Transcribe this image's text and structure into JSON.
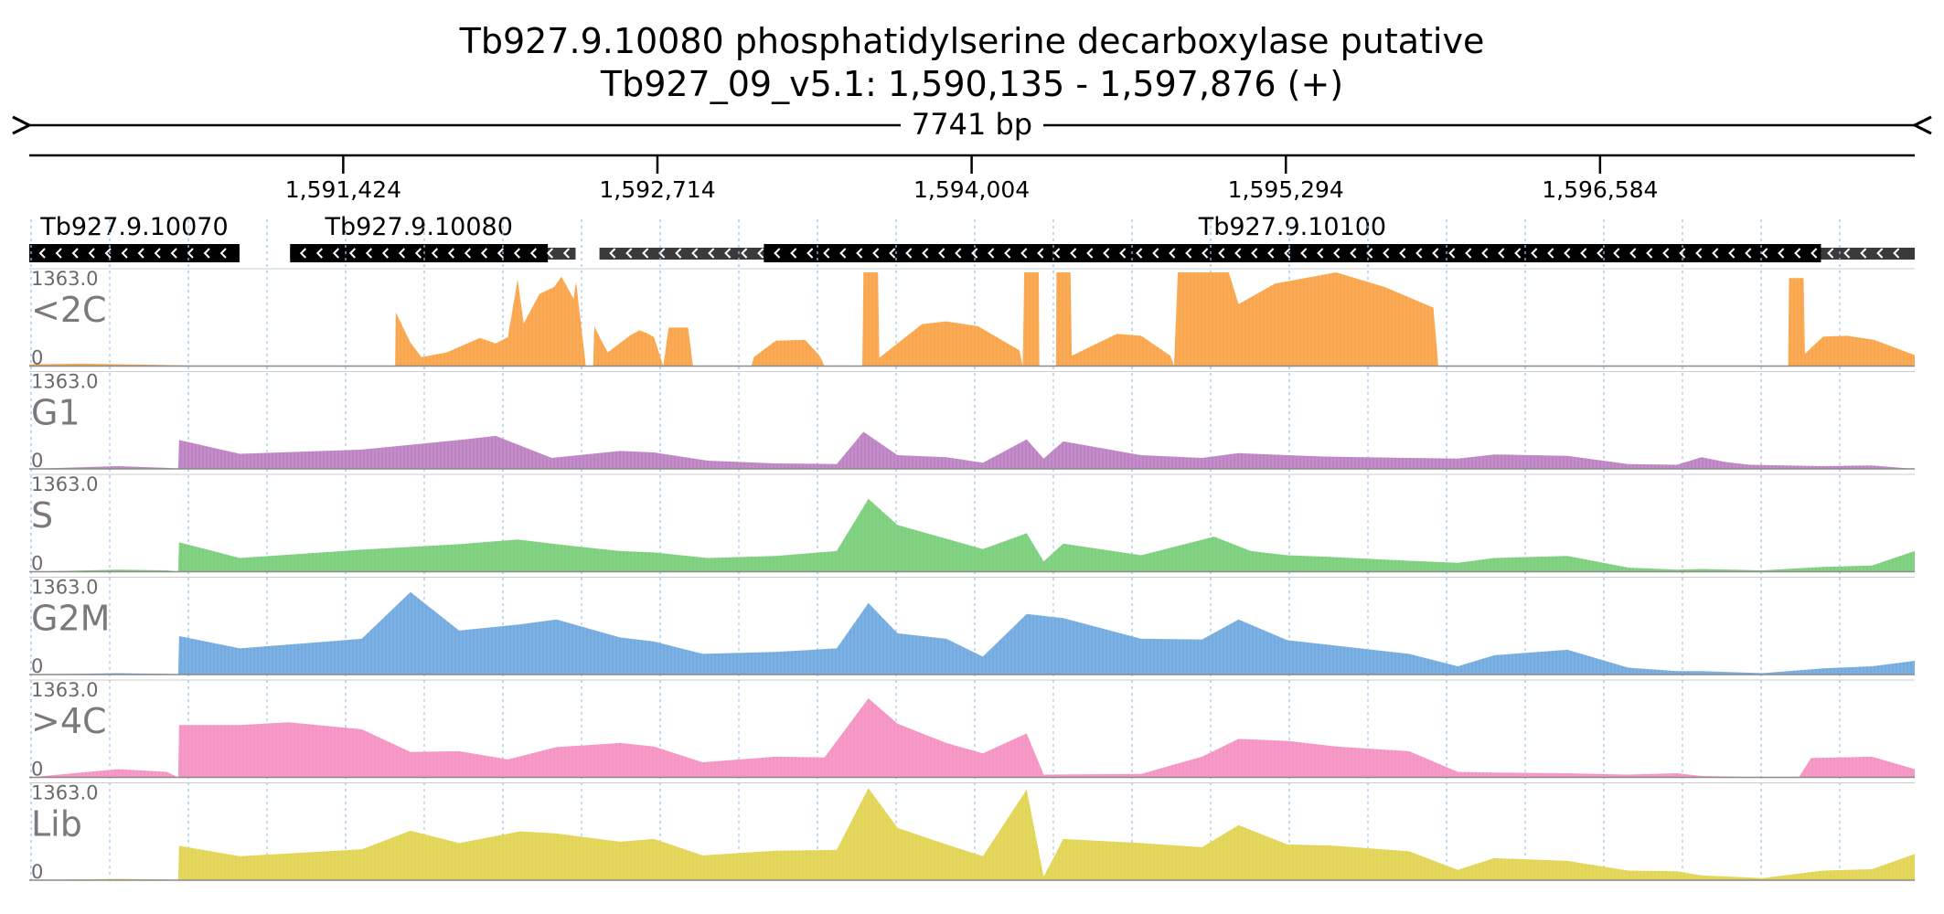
{
  "header": {
    "title_line1": "Tb927.9.10080  phosphatidylserine decarboxylase  putative",
    "title_line2": "Tb927_09_v5.1: 1,590,135 - 1,597,876 (+)",
    "span_label": "7741 bp"
  },
  "chart_data": {
    "type": "area",
    "title": "Tb927.9.10080  phosphatidylserine decarboxylase  putative",
    "subtitle": "Tb927_09_v5.1: 1,590,135 - 1,597,876 (+)",
    "region": {
      "chromosome": "Tb927_09_v5.1",
      "start": 1590135,
      "end": 1597876,
      "strand": "+",
      "length_bp": 7741
    },
    "x_ticks": [
      1591424,
      1592714,
      1594004,
      1595294,
      1596584
    ],
    "x_tick_labels": [
      "1,591,424",
      "1,592,714",
      "1,594,004",
      "1,595,294",
      "1,596,584"
    ],
    "ylim": [
      0,
      1363.0
    ],
    "y_max_label": "1363.0",
    "y_min_label": "0",
    "grid": true,
    "genes": [
      {
        "label": "Tb927.9.10070",
        "start": 1590135,
        "end": 1590998,
        "strand": "-",
        "cds_start": 1590135,
        "cds_end": 1590998
      },
      {
        "label": "Tb927.9.10080",
        "start": 1591206,
        "end": 1592378,
        "strand": "-",
        "cds_start": 1591206,
        "cds_end": 1592264
      },
      {
        "label": "Tb927.9.10100",
        "start": 1592476,
        "end": 1597876,
        "strand": "-",
        "cds_start": 1593151,
        "cds_end": 1597491
      }
    ],
    "series": [
      {
        "name": "<2C",
        "color": "#f9a54b",
        "points": [
          [
            1590135,
            25
          ],
          [
            1590350,
            35
          ],
          [
            1590550,
            22
          ],
          [
            1590650,
            18
          ],
          [
            1590820,
            5
          ],
          [
            1591637,
            0
          ],
          [
            1591640,
            780
          ],
          [
            1591700,
            340
          ],
          [
            1591745,
            130
          ],
          [
            1591850,
            200
          ],
          [
            1591985,
            410
          ],
          [
            1592050,
            330
          ],
          [
            1592100,
            420
          ],
          [
            1592140,
            1260
          ],
          [
            1592165,
            620
          ],
          [
            1592230,
            1050
          ],
          [
            1592290,
            1150
          ],
          [
            1592320,
            1300
          ],
          [
            1592370,
            980
          ],
          [
            1592380,
            1230
          ],
          [
            1592420,
            0
          ],
          [
            1592450,
            0
          ],
          [
            1592455,
            580
          ],
          [
            1592480,
            400
          ],
          [
            1592510,
            200
          ],
          [
            1592600,
            440
          ],
          [
            1592640,
            520
          ],
          [
            1592670,
            480
          ],
          [
            1592700,
            420
          ],
          [
            1592738,
            0
          ],
          [
            1592760,
            560
          ],
          [
            1592840,
            560
          ],
          [
            1592860,
            0
          ],
          [
            1593100,
            0
          ],
          [
            1593110,
            130
          ],
          [
            1593200,
            370
          ],
          [
            1593320,
            380
          ],
          [
            1593380,
            150
          ],
          [
            1593400,
            0
          ],
          [
            1593555,
            0
          ],
          [
            1593560,
            1363
          ],
          [
            1593620,
            1363
          ],
          [
            1593625,
            120
          ],
          [
            1593800,
            610
          ],
          [
            1593900,
            650
          ],
          [
            1594030,
            580
          ],
          [
            1594200,
            230
          ],
          [
            1594214,
            0
          ],
          [
            1594220,
            1363
          ],
          [
            1594280,
            1363
          ],
          [
            1594282,
            0
          ],
          [
            1594350,
            0
          ],
          [
            1594352,
            1363
          ],
          [
            1594410,
            1363
          ],
          [
            1594415,
            150
          ],
          [
            1594600,
            470
          ],
          [
            1594700,
            440
          ],
          [
            1594820,
            150
          ],
          [
            1594835,
            0
          ],
          [
            1594850,
            1363
          ],
          [
            1595060,
            1363
          ],
          [
            1595100,
            900
          ],
          [
            1595250,
            1200
          ],
          [
            1595500,
            1363
          ],
          [
            1595700,
            1150
          ],
          [
            1595900,
            850
          ],
          [
            1595920,
            0
          ],
          [
            1597356,
            0
          ],
          [
            1597360,
            1280
          ],
          [
            1597420,
            1280
          ],
          [
            1597425,
            180
          ],
          [
            1597500,
            430
          ],
          [
            1597600,
            440
          ],
          [
            1597710,
            380
          ],
          [
            1597876,
            160
          ]
        ]
      },
      {
        "name": "G1",
        "color": "#be83c4",
        "points": [
          [
            1590135,
            0
          ],
          [
            1590500,
            40
          ],
          [
            1590700,
            15
          ],
          [
            1590746,
            0
          ],
          [
            1590750,
            420
          ],
          [
            1591000,
            220
          ],
          [
            1591500,
            280
          ],
          [
            1591900,
            420
          ],
          [
            1592050,
            480
          ],
          [
            1592280,
            160
          ],
          [
            1592560,
            260
          ],
          [
            1592700,
            240
          ],
          [
            1592920,
            120
          ],
          [
            1593200,
            80
          ],
          [
            1593450,
            70
          ],
          [
            1593560,
            540
          ],
          [
            1593700,
            200
          ],
          [
            1593900,
            170
          ],
          [
            1594050,
            90
          ],
          [
            1594230,
            430
          ],
          [
            1594300,
            150
          ],
          [
            1594380,
            400
          ],
          [
            1594700,
            200
          ],
          [
            1594950,
            160
          ],
          [
            1595100,
            230
          ],
          [
            1595300,
            200
          ],
          [
            1595450,
            180
          ],
          [
            1595800,
            160
          ],
          [
            1596000,
            150
          ],
          [
            1596150,
            210
          ],
          [
            1596450,
            190
          ],
          [
            1596700,
            70
          ],
          [
            1596900,
            60
          ],
          [
            1597000,
            170
          ],
          [
            1597100,
            100
          ],
          [
            1597200,
            60
          ],
          [
            1597500,
            40
          ],
          [
            1597700,
            50
          ],
          [
            1597876,
            0
          ]
        ]
      },
      {
        "name": "S",
        "color": "#7ccf7c",
        "points": [
          [
            1590135,
            0
          ],
          [
            1590500,
            30
          ],
          [
            1590700,
            20
          ],
          [
            1590746,
            0
          ],
          [
            1590750,
            430
          ],
          [
            1591000,
            200
          ],
          [
            1591500,
            320
          ],
          [
            1591900,
            400
          ],
          [
            1592140,
            470
          ],
          [
            1592300,
            400
          ],
          [
            1592560,
            300
          ],
          [
            1592700,
            280
          ],
          [
            1592920,
            200
          ],
          [
            1593200,
            230
          ],
          [
            1593450,
            300
          ],
          [
            1593580,
            1060
          ],
          [
            1593700,
            680
          ],
          [
            1593900,
            480
          ],
          [
            1594050,
            330
          ],
          [
            1594230,
            560
          ],
          [
            1594300,
            150
          ],
          [
            1594380,
            410
          ],
          [
            1594700,
            240
          ],
          [
            1595000,
            510
          ],
          [
            1595150,
            300
          ],
          [
            1595300,
            240
          ],
          [
            1595450,
            220
          ],
          [
            1595800,
            160
          ],
          [
            1596000,
            130
          ],
          [
            1596150,
            200
          ],
          [
            1596450,
            230
          ],
          [
            1596700,
            60
          ],
          [
            1596900,
            30
          ],
          [
            1597000,
            40
          ],
          [
            1597250,
            20
          ],
          [
            1597500,
            70
          ],
          [
            1597700,
            90
          ],
          [
            1597876,
            300
          ]
        ]
      },
      {
        "name": "G2M",
        "color": "#73abe0",
        "points": [
          [
            1590135,
            0
          ],
          [
            1590500,
            20
          ],
          [
            1590700,
            10
          ],
          [
            1590746,
            0
          ],
          [
            1590750,
            560
          ],
          [
            1591000,
            380
          ],
          [
            1591500,
            520
          ],
          [
            1591700,
            1200
          ],
          [
            1591900,
            640
          ],
          [
            1592150,
            730
          ],
          [
            1592300,
            800
          ],
          [
            1592560,
            540
          ],
          [
            1592700,
            480
          ],
          [
            1592900,
            300
          ],
          [
            1593200,
            330
          ],
          [
            1593450,
            380
          ],
          [
            1593580,
            1040
          ],
          [
            1593700,
            600
          ],
          [
            1593900,
            520
          ],
          [
            1594050,
            260
          ],
          [
            1594230,
            880
          ],
          [
            1594380,
            820
          ],
          [
            1594700,
            520
          ],
          [
            1594950,
            510
          ],
          [
            1595100,
            800
          ],
          [
            1595300,
            500
          ],
          [
            1595500,
            420
          ],
          [
            1595800,
            300
          ],
          [
            1596000,
            120
          ],
          [
            1596150,
            280
          ],
          [
            1596450,
            360
          ],
          [
            1596700,
            100
          ],
          [
            1596900,
            50
          ],
          [
            1597000,
            50
          ],
          [
            1597250,
            20
          ],
          [
            1597500,
            90
          ],
          [
            1597700,
            120
          ],
          [
            1597876,
            200
          ]
        ]
      },
      {
        "name": ">4C",
        "color": "#f593c3",
        "points": [
          [
            1590135,
            0
          ],
          [
            1590500,
            120
          ],
          [
            1590700,
            80
          ],
          [
            1590746,
            0
          ],
          [
            1590750,
            760
          ],
          [
            1591000,
            760
          ],
          [
            1591200,
            800
          ],
          [
            1591500,
            700
          ],
          [
            1591700,
            370
          ],
          [
            1591900,
            380
          ],
          [
            1592100,
            260
          ],
          [
            1592300,
            440
          ],
          [
            1592560,
            500
          ],
          [
            1592700,
            450
          ],
          [
            1592900,
            220
          ],
          [
            1593200,
            300
          ],
          [
            1593400,
            290
          ],
          [
            1593580,
            1150
          ],
          [
            1593700,
            780
          ],
          [
            1593900,
            500
          ],
          [
            1594050,
            350
          ],
          [
            1594230,
            640
          ],
          [
            1594300,
            40
          ],
          [
            1594700,
            50
          ],
          [
            1594950,
            300
          ],
          [
            1595100,
            560
          ],
          [
            1595300,
            530
          ],
          [
            1595500,
            450
          ],
          [
            1595800,
            380
          ],
          [
            1596000,
            80
          ],
          [
            1596150,
            70
          ],
          [
            1596450,
            60
          ],
          [
            1596700,
            40
          ],
          [
            1596900,
            60
          ],
          [
            1597000,
            20
          ],
          [
            1597250,
            0
          ],
          [
            1597400,
            0
          ],
          [
            1597450,
            280
          ],
          [
            1597700,
            300
          ],
          [
            1597876,
            120
          ]
        ]
      },
      {
        "name": "Lib",
        "color": "#e2d454",
        "points": [
          [
            1590135,
            0
          ],
          [
            1590500,
            20
          ],
          [
            1590700,
            10
          ],
          [
            1590746,
            0
          ],
          [
            1590750,
            500
          ],
          [
            1591000,
            350
          ],
          [
            1591500,
            450
          ],
          [
            1591700,
            720
          ],
          [
            1591900,
            540
          ],
          [
            1592150,
            710
          ],
          [
            1592300,
            680
          ],
          [
            1592560,
            560
          ],
          [
            1592700,
            600
          ],
          [
            1592900,
            360
          ],
          [
            1593200,
            430
          ],
          [
            1593450,
            440
          ],
          [
            1593580,
            1340
          ],
          [
            1593700,
            760
          ],
          [
            1593900,
            520
          ],
          [
            1594050,
            350
          ],
          [
            1594230,
            1320
          ],
          [
            1594300,
            50
          ],
          [
            1594380,
            600
          ],
          [
            1594700,
            540
          ],
          [
            1594950,
            480
          ],
          [
            1595100,
            800
          ],
          [
            1595300,
            520
          ],
          [
            1595500,
            500
          ],
          [
            1595800,
            420
          ],
          [
            1596000,
            150
          ],
          [
            1596150,
            320
          ],
          [
            1596450,
            280
          ],
          [
            1596700,
            140
          ],
          [
            1596900,
            130
          ],
          [
            1597000,
            70
          ],
          [
            1597250,
            30
          ],
          [
            1597500,
            140
          ],
          [
            1597700,
            160
          ],
          [
            1597876,
            380
          ]
        ]
      }
    ]
  }
}
